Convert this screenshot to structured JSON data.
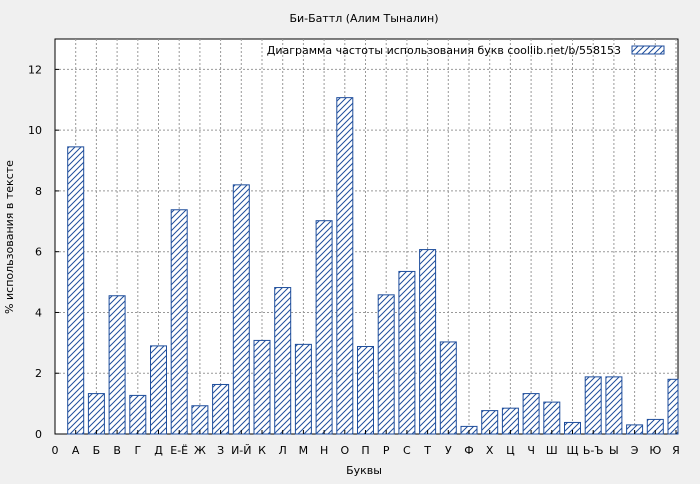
{
  "chart_data": {
    "type": "bar",
    "title": "Би-Баттл (Алим Тыналин)",
    "xlabel": "Буквы",
    "ylabel": "% использования в тексте",
    "legend": "Диаграмма частоты использования букв  coollib.net/b/558153",
    "legend_position": "top-right",
    "grid": true,
    "ylim": [
      0,
      13
    ],
    "yticks": [
      0,
      2,
      4,
      6,
      8,
      10,
      12
    ],
    "categories": [
      "0",
      "А",
      "Б",
      "В",
      "Г",
      "Д",
      "Е-Ё",
      "Ж",
      "З",
      "И-Й",
      "К",
      "Л",
      "М",
      "Н",
      "О",
      "П",
      "Р",
      "С",
      "Т",
      "У",
      "Ф",
      "Х",
      "Ц",
      "Ч",
      "Ш",
      "Щ",
      "Ь-Ъ",
      "Ы",
      "Э",
      "Ю",
      "Я"
    ],
    "values": [
      0,
      9.45,
      1.33,
      4.55,
      1.27,
      2.9,
      7.38,
      0.93,
      1.63,
      8.2,
      3.08,
      4.82,
      2.95,
      7.02,
      11.07,
      2.88,
      4.58,
      5.35,
      6.07,
      3.03,
      0.25,
      0.77,
      0.85,
      1.33,
      1.05,
      0.38,
      1.88,
      1.88,
      0.3,
      0.48,
      1.8
    ],
    "bar_color": "#1f4e9c"
  }
}
